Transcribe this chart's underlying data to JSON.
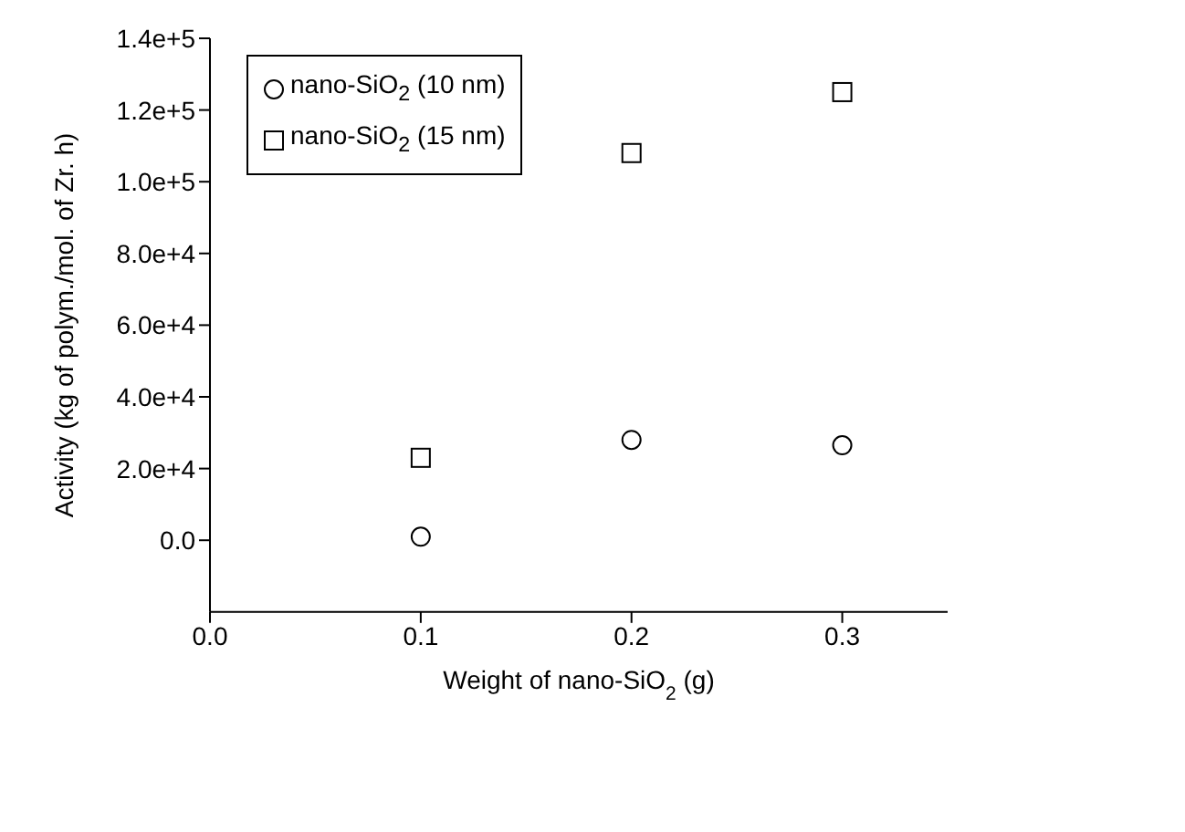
{
  "chart_data": {
    "type": "scatter",
    "xlabel": "Weight of nano-SiO$_{2}$ (g)",
    "ylabel": "Activity (kg of polym./mol. of Zr. h)",
    "xlim": [
      0,
      0.35
    ],
    "xticks": [
      {
        "value": 0,
        "label": "0.0"
      },
      0.1,
      0.2,
      0.3
    ],
    "ylim": [
      -20000,
      140000
    ],
    "yticks": [
      {
        "value": 0,
        "label": "0.0"
      },
      {
        "value": 20000,
        "label": "2.0e+4"
      },
      {
        "value": 40000,
        "label": "4.0e+4"
      },
      {
        "value": 60000,
        "label": "6.0e+4"
      },
      {
        "value": 80000,
        "label": "8.0e+4"
      },
      {
        "value": 100000,
        "label": "1.0e+5"
      },
      {
        "value": 120000,
        "label": "1.2e+5"
      },
      {
        "value": 140000,
        "label": "1.4e+5"
      }
    ],
    "x": [
      0.1,
      0.2,
      0.3
    ],
    "series": [
      {
        "name": "nano-SiO$_{2}$ (10 nm)",
        "color": "#000000",
        "marker": "circle",
        "values": [
          1000,
          28000,
          26500
        ]
      },
      {
        "name": "nano-SiO$_{2}$ (15 nm)",
        "color": "#000000",
        "marker": "square",
        "values": [
          23000,
          108000,
          125000
        ]
      }
    ],
    "legend": "top left",
    "grid": false
  }
}
